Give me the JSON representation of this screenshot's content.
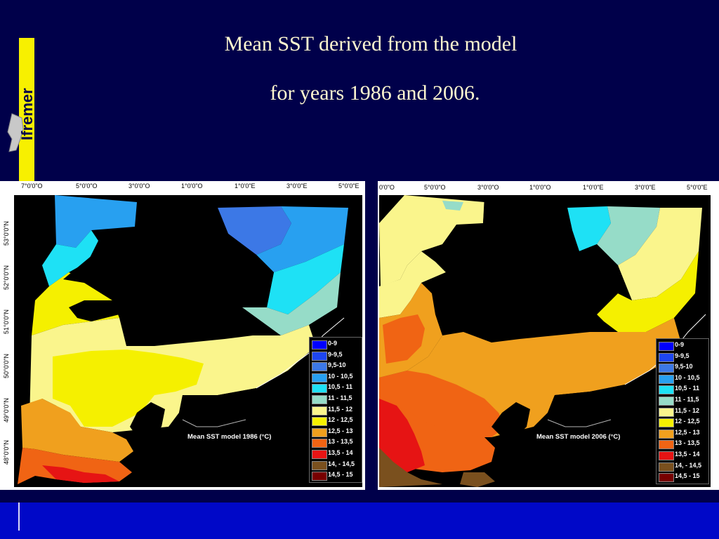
{
  "slide": {
    "title_line1": "Mean SST derived from the model",
    "title_line2": "for years 1986 and 2006.",
    "logo_text": "Ifremer"
  },
  "colors": {
    "background": "#00004a",
    "footer": "#0008c8",
    "logo_bar": "#f7f000",
    "land": "#000000"
  },
  "legend": [
    {
      "label": "0-9",
      "color": "#0000ff"
    },
    {
      "label": "9-9,5",
      "color": "#1e46f0"
    },
    {
      "label": "9,5-10",
      "color": "#3c78e6"
    },
    {
      "label": "10 - 10,5",
      "color": "#28a0f0"
    },
    {
      "label": "10,5 - 11",
      "color": "#1ee1f5"
    },
    {
      "label": "11 - 11,5",
      "color": "#96dcc8"
    },
    {
      "label": "11,5 - 12",
      "color": "#faf58c"
    },
    {
      "label": "12 - 12,5",
      "color": "#f5f000"
    },
    {
      "label": "12,5 - 13",
      "color": "#f0a01e"
    },
    {
      "label": "13 - 13,5",
      "color": "#f06414"
    },
    {
      "label": "13,5 - 14",
      "color": "#e61414"
    },
    {
      "label": "14, - 14,5",
      "color": "#7a501e"
    },
    {
      "label": "14,5 - 15",
      "color": "#780000"
    }
  ],
  "maps": {
    "left": {
      "caption": "Mean SST model 1986 (°C)",
      "lon_labels": [
        "7°0'0\"O",
        "5°0'0\"O",
        "3°0'0\"O",
        "1°0'0\"O",
        "1°0'0\"E",
        "3°0'0\"E",
        "5°0'0\"E"
      ],
      "lat_labels": [
        "53°0'0\"N",
        "52°0'0\"N",
        "51°0'0\"N",
        "50°0'0\"N",
        "49°0'0\"N",
        "48°0'0\"N"
      ]
    },
    "right": {
      "caption": "Mean SST model 2006 (°C)",
      "lon_labels": [
        "0'0\"O",
        "5°0'0\"O",
        "3°0'0\"O",
        "1°0'0\"O",
        "1°0'0\"E",
        "3°0'0\"E",
        "5°0'0\"E"
      ]
    }
  }
}
